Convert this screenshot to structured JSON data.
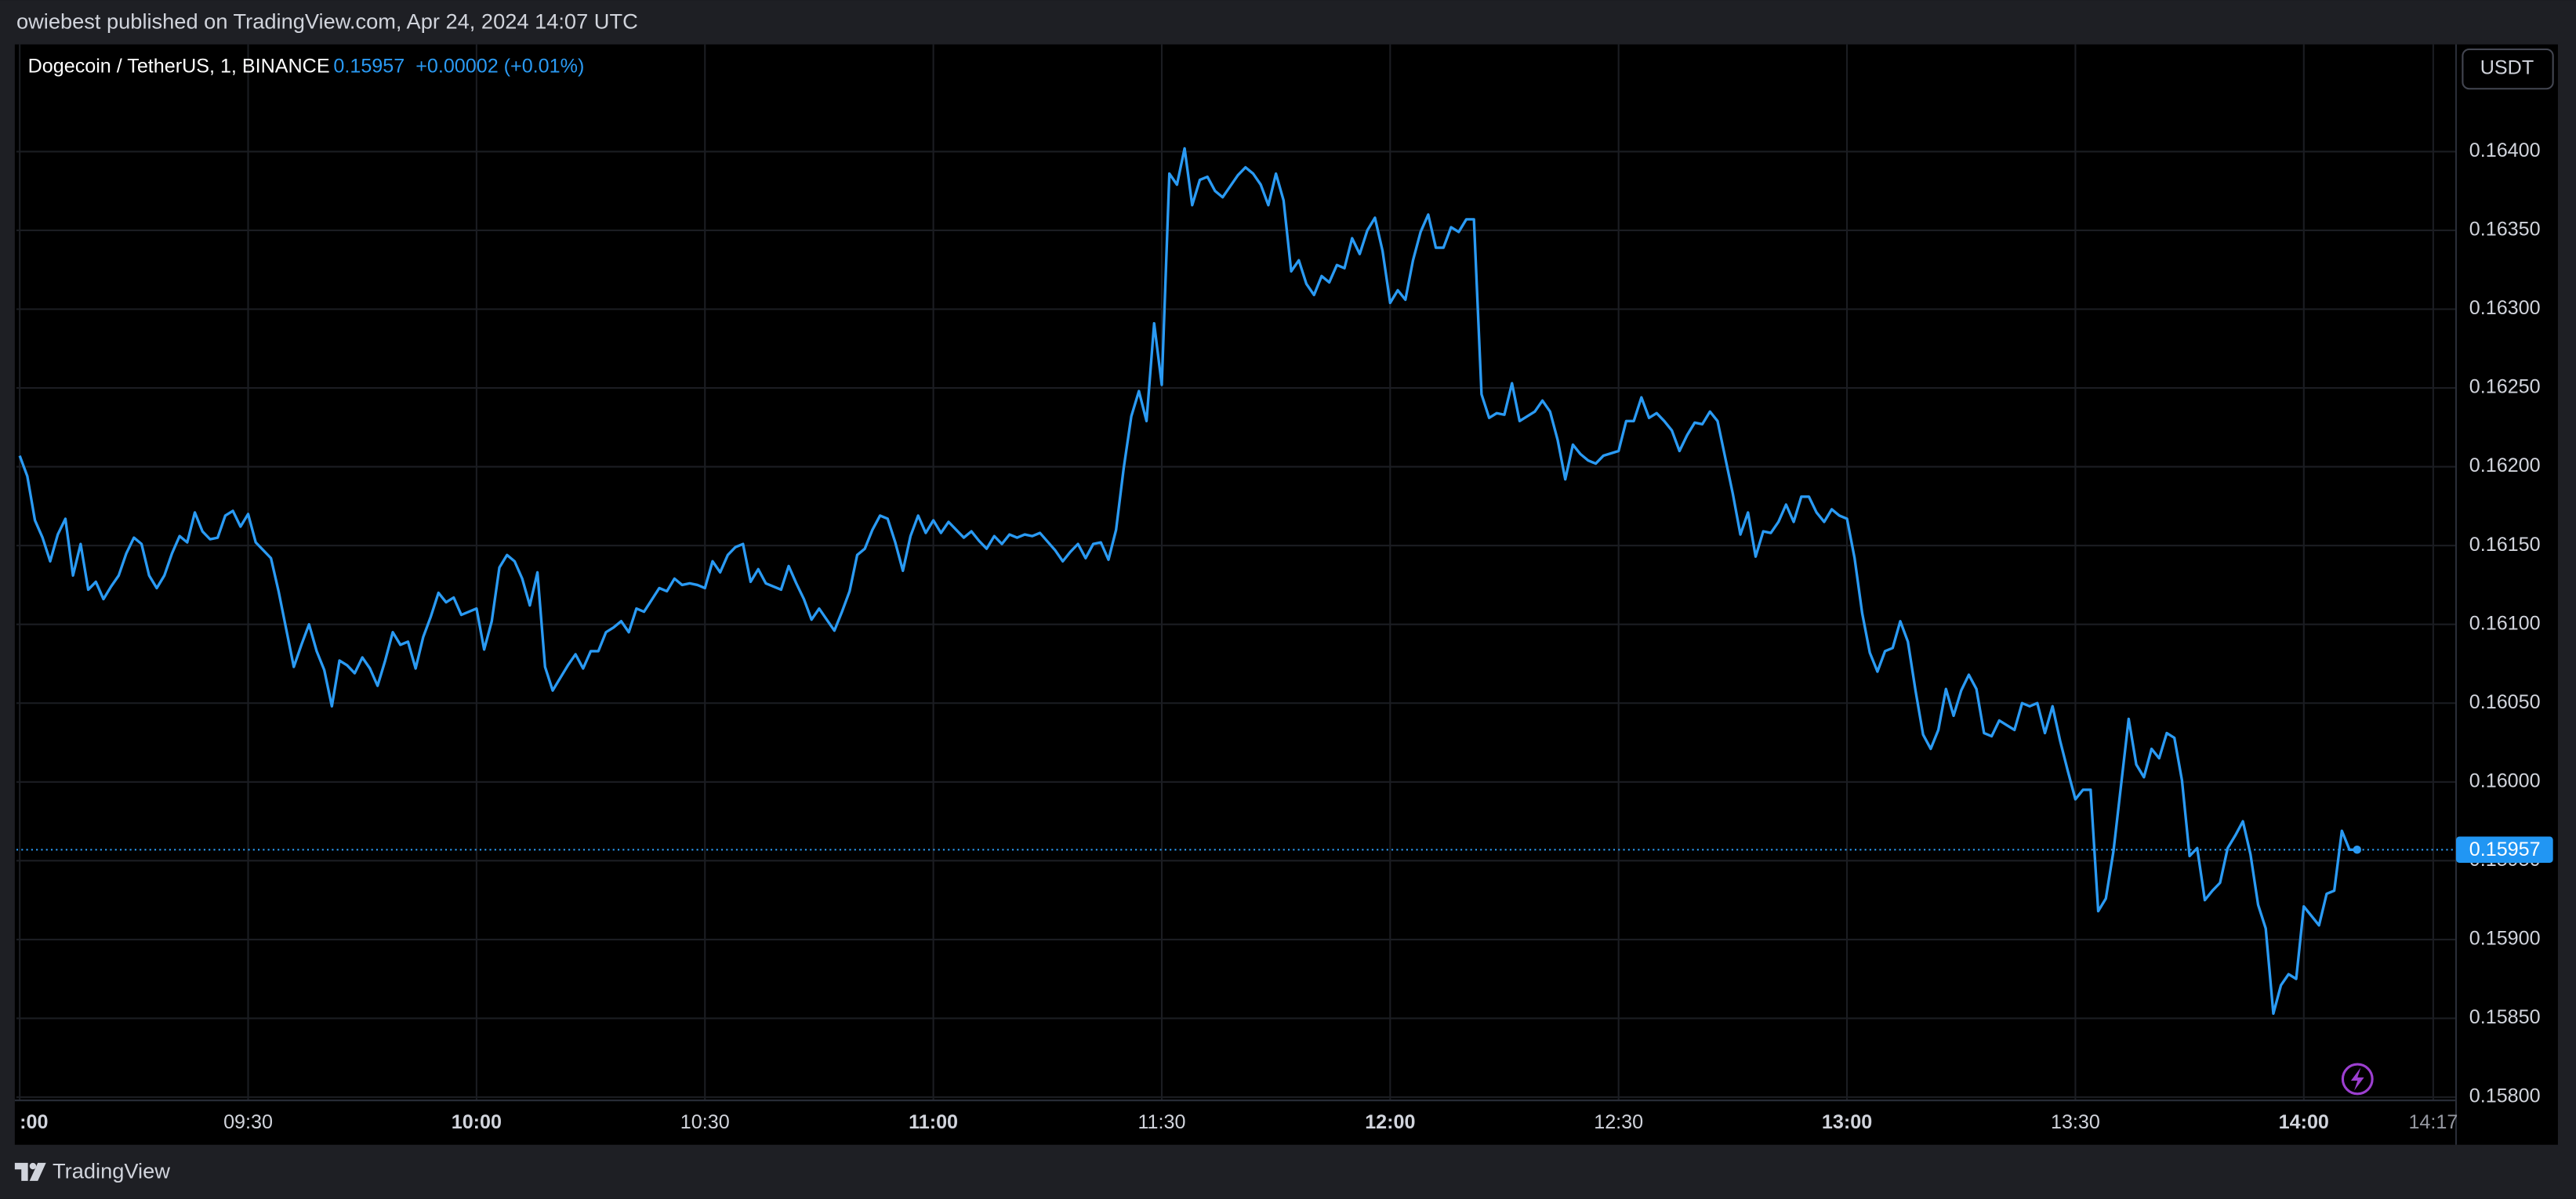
{
  "header": {
    "title": "owiebest published on TradingView.com, Apr 24, 2024 14:07 UTC"
  },
  "footer": {
    "brand": "TradingView"
  },
  "chart_data": {
    "type": "line",
    "symbol": "Dogecoin / TetherUS, 1, BINANCE",
    "change_label": "+0.00002 (+0.01%)",
    "currency": "USDT",
    "price_line": {
      "value": 0.15957,
      "label": "0.15957"
    },
    "grid": true,
    "xlim": [
      "09:00",
      "14:20"
    ],
    "ylim": [
      0.158,
      0.16468
    ],
    "xticks": [
      {
        "value": "09:00",
        "label": ":00"
      },
      "09:30",
      "10:00",
      "10:30",
      "11:00",
      "11:30",
      "12:00",
      "12:30",
      "13:00",
      "13:30",
      "14:00",
      "14:17"
    ],
    "yticks": [
      {
        "value": 0.158,
        "label": "0.15800"
      },
      {
        "value": 0.1585,
        "label": "0.15850"
      },
      {
        "value": 0.159,
        "label": "0.15900"
      },
      {
        "value": 0.1595,
        "label": "0.15950"
      },
      {
        "value": 0.16,
        "label": "0.16000"
      },
      {
        "value": 0.1605,
        "label": "0.16050"
      },
      {
        "value": 0.161,
        "label": "0.16100"
      },
      {
        "value": 0.1615,
        "label": "0.16150"
      },
      {
        "value": 0.162,
        "label": "0.16200"
      },
      {
        "value": 0.1625,
        "label": "0.16250"
      },
      {
        "value": 0.163,
        "label": "0.16300"
      },
      {
        "value": 0.1635,
        "label": "0.16350"
      },
      {
        "value": 0.164,
        "label": "0.16400"
      }
    ],
    "x": [
      "09:00",
      "09:01",
      "09:02",
      "09:03",
      "09:04",
      "09:05",
      "09:06",
      "09:07",
      "09:08",
      "09:09",
      "09:10",
      "09:11",
      "09:12",
      "09:13",
      "09:14",
      "09:15",
      "09:16",
      "09:17",
      "09:18",
      "09:19",
      "09:20",
      "09:21",
      "09:22",
      "09:23",
      "09:24",
      "09:25",
      "09:26",
      "09:27",
      "09:28",
      "09:29",
      "09:30",
      "09:31",
      "09:33",
      "09:34",
      "09:35",
      "09:36",
      "09:37",
      "09:38",
      "09:39",
      "09:40",
      "09:41",
      "09:42",
      "09:43",
      "09:44",
      "09:45",
      "09:46",
      "09:47",
      "09:48",
      "09:49",
      "09:50",
      "09:51",
      "09:52",
      "09:53",
      "09:54",
      "09:55",
      "09:56",
      "09:57",
      "09:58",
      "10:00",
      "10:01",
      "10:02",
      "10:03",
      "10:04",
      "10:05",
      "10:06",
      "10:07",
      "10:08",
      "10:09",
      "10:10",
      "10:11",
      "10:12",
      "10:13",
      "10:14",
      "10:15",
      "10:16",
      "10:17",
      "10:18",
      "10:19",
      "10:20",
      "10:21",
      "10:22",
      "10:24",
      "10:25",
      "10:26",
      "10:27",
      "10:28",
      "10:29",
      "10:30",
      "10:31",
      "10:32",
      "10:33",
      "10:34",
      "10:35",
      "10:36",
      "10:37",
      "10:38",
      "10:39",
      "10:40",
      "10:41",
      "10:42",
      "10:43",
      "10:44",
      "10:45",
      "10:46",
      "10:47",
      "10:48",
      "10:49",
      "10:50",
      "10:51",
      "10:52",
      "10:53",
      "10:54",
      "10:55",
      "10:56",
      "10:57",
      "10:58",
      "10:59",
      "11:00",
      "11:01",
      "11:02",
      "11:03",
      "11:04",
      "11:05",
      "11:06",
      "11:07",
      "11:08",
      "11:09",
      "11:10",
      "11:11",
      "11:12",
      "11:13",
      "11:14",
      "11:16",
      "11:17",
      "11:18",
      "11:19",
      "11:20",
      "11:21",
      "11:22",
      "11:23",
      "11:24",
      "11:25",
      "11:26",
      "11:27",
      "11:28",
      "11:29",
      "11:30",
      "11:31",
      "11:32",
      "11:33",
      "11:34",
      "11:35",
      "11:36",
      "11:37",
      "11:38",
      "11:40",
      "11:41",
      "11:42",
      "11:43",
      "11:44",
      "11:45",
      "11:46",
      "11:47",
      "11:48",
      "11:49",
      "11:50",
      "11:51",
      "11:52",
      "11:53",
      "11:54",
      "11:55",
      "11:56",
      "11:57",
      "11:58",
      "11:59",
      "12:00",
      "12:01",
      "12:02",
      "12:03",
      "12:04",
      "12:05",
      "12:06",
      "12:07",
      "12:08",
      "12:09",
      "12:10",
      "12:11",
      "12:12",
      "12:13",
      "12:14",
      "12:15",
      "12:16",
      "12:17",
      "12:19",
      "12:20",
      "12:21",
      "12:22",
      "12:23",
      "12:24",
      "12:25",
      "12:26",
      "12:27",
      "12:28",
      "12:30",
      "12:31",
      "12:32",
      "12:33",
      "12:34",
      "12:35",
      "12:36",
      "12:37",
      "12:38",
      "12:39",
      "12:40",
      "12:41",
      "12:42",
      "12:43",
      "12:44",
      "12:45",
      "12:46",
      "12:47",
      "12:48",
      "12:49",
      "12:50",
      "12:51",
      "12:52",
      "12:53",
      "12:54",
      "12:55",
      "12:56",
      "12:57",
      "12:58",
      "12:59",
      "13:00",
      "13:01",
      "13:02",
      "13:03",
      "13:04",
      "13:05",
      "13:06",
      "13:07",
      "13:08",
      "13:09",
      "13:10",
      "13:11",
      "13:12",
      "13:13",
      "13:14",
      "13:15",
      "13:16",
      "13:17",
      "13:18",
      "13:19",
      "13:20",
      "13:21",
      "13:22",
      "13:23",
      "13:24",
      "13:25",
      "13:26",
      "13:27",
      "13:28",
      "13:29",
      "13:30",
      "13:31",
      "13:32",
      "13:33",
      "13:34",
      "13:35",
      "13:36",
      "13:37",
      "13:38",
      "13:39",
      "13:40",
      "13:41",
      "13:42",
      "13:43",
      "13:44",
      "13:45",
      "13:46",
      "13:47",
      "13:48",
      "13:49",
      "13:50",
      "13:51",
      "13:52",
      "13:53",
      "13:54",
      "13:55",
      "13:56",
      "13:57",
      "13:58",
      "13:59",
      "14:00",
      "14:01",
      "14:02",
      "14:03",
      "14:04",
      "14:05",
      "14:06",
      "14:07"
    ],
    "series": [
      {
        "name": "Dogecoin / TetherUS",
        "color": "#2a9af3",
        "values": [
          0.16207,
          0.16194,
          0.16166,
          0.16155,
          0.1614,
          0.16157,
          0.16167,
          0.16131,
          0.16151,
          0.16122,
          0.16127,
          0.16116,
          0.16124,
          0.16131,
          0.16145,
          0.16155,
          0.16151,
          0.16131,
          0.16123,
          0.16131,
          0.16145,
          0.16156,
          0.16152,
          0.16171,
          0.16159,
          0.16154,
          0.16155,
          0.16169,
          0.16172,
          0.16162,
          0.1617,
          0.16152,
          0.16142,
          0.16121,
          0.16097,
          0.16073,
          0.16087,
          0.161,
          0.16083,
          0.16071,
          0.16048,
          0.16077,
          0.16074,
          0.16069,
          0.16079,
          0.16072,
          0.16061,
          0.16077,
          0.16095,
          0.16087,
          0.16089,
          0.16072,
          0.16092,
          0.16105,
          0.1612,
          0.16114,
          0.16117,
          0.16106,
          0.1611,
          0.16084,
          0.16102,
          0.16136,
          0.16144,
          0.1614,
          0.16129,
          0.16112,
          0.16133,
          0.16073,
          0.16058,
          0.16066,
          0.16074,
          0.16081,
          0.16072,
          0.16083,
          0.16083,
          0.16095,
          0.16098,
          0.16102,
          0.16095,
          0.1611,
          0.16108,
          0.16123,
          0.16121,
          0.16129,
          0.16125,
          0.16126,
          0.16125,
          0.16123,
          0.1614,
          0.16133,
          0.16144,
          0.16149,
          0.16151,
          0.16127,
          0.16135,
          0.16126,
          0.16124,
          0.16122,
          0.16137,
          0.16126,
          0.16116,
          0.16103,
          0.1611,
          0.16103,
          0.16096,
          0.16108,
          0.16121,
          0.16144,
          0.16148,
          0.1616,
          0.16169,
          0.16167,
          0.16152,
          0.16134,
          0.16156,
          0.16169,
          0.16158,
          0.16166,
          0.16158,
          0.16165,
          0.1616,
          0.16155,
          0.16159,
          0.16153,
          0.16148,
          0.16156,
          0.16151,
          0.16157,
          0.16155,
          0.16157,
          0.16156,
          0.16158,
          0.16147,
          0.1614,
          0.16146,
          0.16151,
          0.16142,
          0.16151,
          0.16152,
          0.16141,
          0.1616,
          0.16199,
          0.16232,
          0.16248,
          0.16229,
          0.16291,
          0.16252,
          0.16386,
          0.16379,
          0.16402,
          0.16366,
          0.16382,
          0.16384,
          0.16375,
          0.16371,
          0.16385,
          0.1639,
          0.16386,
          0.16379,
          0.16366,
          0.16386,
          0.16369,
          0.16324,
          0.16331,
          0.16316,
          0.16309,
          0.16321,
          0.16317,
          0.16328,
          0.16326,
          0.16345,
          0.16335,
          0.1635,
          0.16358,
          0.16337,
          0.16304,
          0.16312,
          0.16306,
          0.16331,
          0.16349,
          0.1636,
          0.16339,
          0.16339,
          0.16352,
          0.16349,
          0.16357,
          0.16357,
          0.16246,
          0.16231,
          0.16234,
          0.16233,
          0.16253,
          0.16229,
          0.16235,
          0.16242,
          0.16235,
          0.16217,
          0.16192,
          0.16214,
          0.16208,
          0.16204,
          0.16202,
          0.16207,
          0.1621,
          0.16229,
          0.16229,
          0.16244,
          0.16231,
          0.16234,
          0.16229,
          0.16223,
          0.1621,
          0.1622,
          0.16228,
          0.16227,
          0.16235,
          0.16229,
          0.16206,
          0.16183,
          0.16157,
          0.16171,
          0.16143,
          0.16159,
          0.16158,
          0.16165,
          0.16176,
          0.16165,
          0.16181,
          0.16181,
          0.16171,
          0.16165,
          0.16173,
          0.16169,
          0.16167,
          0.16142,
          0.16107,
          0.16082,
          0.1607,
          0.16083,
          0.16085,
          0.16102,
          0.16089,
          0.16058,
          0.1603,
          0.16021,
          0.16033,
          0.16059,
          0.16042,
          0.16058,
          0.16068,
          0.16059,
          0.16031,
          0.16029,
          0.16039,
          0.16036,
          0.16033,
          0.1605,
          0.16048,
          0.1605,
          0.16031,
          0.16048,
          0.16026,
          0.16007,
          0.15989,
          0.15995,
          0.15995,
          0.15918,
          0.15926,
          0.15956,
          0.15998,
          0.1604,
          0.16011,
          0.16003,
          0.16021,
          0.16015,
          0.16031,
          0.16028,
          0.16001,
          0.15953,
          0.15958,
          0.15925,
          0.15931,
          0.15936,
          0.15958,
          0.15966,
          0.15975,
          0.15954,
          0.15922,
          0.15907,
          0.15853,
          0.15871,
          0.15878,
          0.15875,
          0.15921,
          0.15915,
          0.15909,
          0.15929,
          0.15931,
          0.15969,
          0.15957,
          0.15957
        ]
      }
    ]
  }
}
